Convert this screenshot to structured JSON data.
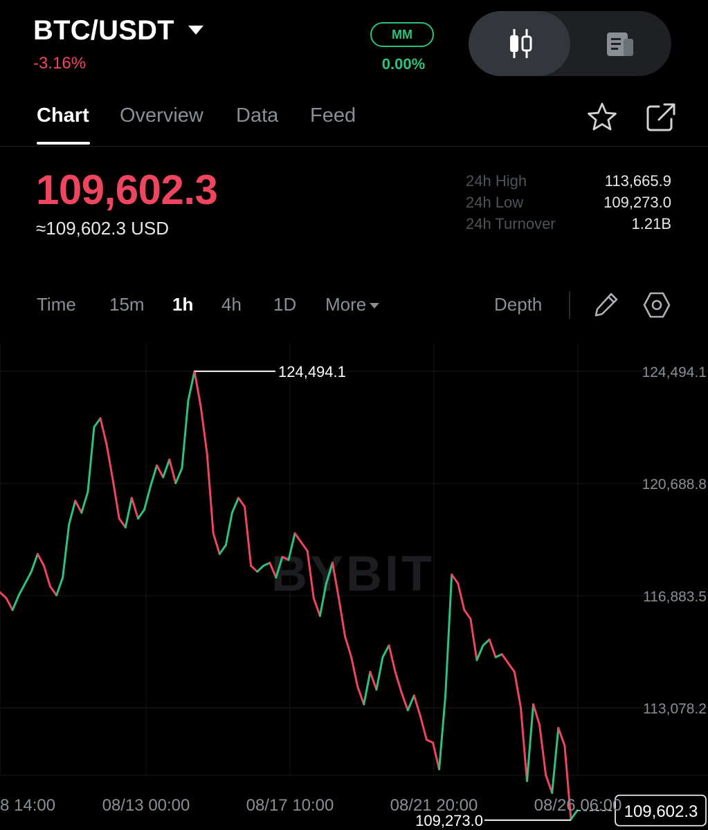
{
  "header": {
    "pair": "BTC/USDT",
    "change": "-3.16%",
    "mm_label": "MM",
    "mm_value": "0.00%",
    "view_toggle": {
      "active": "chart-view",
      "icons": [
        "candlestick-icon",
        "document-icon"
      ]
    }
  },
  "tabs": [
    {
      "label": "Chart",
      "active": true
    },
    {
      "label": "Overview",
      "active": false
    },
    {
      "label": "Data",
      "active": false
    },
    {
      "label": "Feed",
      "active": false
    }
  ],
  "actions": {
    "icons": [
      "star-icon",
      "share-icon"
    ]
  },
  "price": {
    "last": "109,602.3",
    "usd": "≈109,602.3 USD"
  },
  "stats": [
    {
      "label": "24h High",
      "value": "113,665.9"
    },
    {
      "label": "24h Low",
      "value": "109,273.0"
    },
    {
      "label": "24h Turnover",
      "value": "1.21B"
    }
  ],
  "intervals": {
    "items": [
      {
        "label": "Time",
        "active": false
      },
      {
        "label": "15m",
        "active": false
      },
      {
        "label": "1h",
        "active": true
      },
      {
        "label": "4h",
        "active": false
      },
      {
        "label": "1D",
        "active": false
      },
      {
        "label": "More",
        "active": false
      }
    ],
    "depth_label": "Depth",
    "icons": [
      "pencil-icon",
      "settings-hex-icon"
    ]
  },
  "colors": {
    "up": "#2ec27e",
    "down": "#f0455e",
    "grid": "#17191c",
    "axis_text": "#8a8f96"
  },
  "chart_data": {
    "type": "line",
    "series": [
      {
        "values": [
          117000,
          116800,
          116400,
          116900,
          117300,
          117700,
          118300,
          117900,
          117200,
          116900,
          117500,
          119300,
          120100,
          119700,
          120400,
          122600,
          122900,
          122000,
          120800,
          119500,
          119200,
          120200,
          119500,
          119800,
          120600,
          121300,
          120900,
          121500,
          120700,
          121200,
          123500,
          124494.1,
          123300,
          121700,
          119000,
          118300,
          118600,
          119700,
          120200,
          119900,
          117900,
          117700,
          117900,
          118000,
          117500,
          118200,
          118100,
          119000,
          118700,
          118400,
          116800,
          116200,
          117300,
          118000,
          116800,
          115500,
          114800,
          113800,
          113200,
          114300,
          113700,
          114800,
          115200,
          114300,
          113600,
          113000,
          113500,
          112800,
          112000,
          111900,
          111000,
          113500,
          117600,
          117300,
          116400,
          116100,
          114700,
          115200,
          115400,
          114800,
          114900,
          114600,
          114300,
          113100,
          110600,
          113200,
          112500,
          110800,
          110200,
          112400,
          111800,
          109300,
          109602.3
        ]
      }
    ],
    "x_tick_labels": [
      "8 14:00",
      "08/13 00:00",
      "08/17 10:00",
      "08/21 20:00",
      "08/26 06:00"
    ],
    "y_tick_labels": [
      "124,494.1",
      "120,688.8",
      "116,883.5",
      "113,078.2"
    ],
    "y_ticks": [
      124494.1,
      120688.8,
      116883.5,
      113078.2
    ],
    "ylim": [
      108940,
      125450
    ],
    "high_annotation": {
      "value": 124494.1,
      "label": "124,494.1"
    },
    "low_annotation": {
      "value": 109273.0,
      "label": "109,273.0"
    },
    "last_price_tag": {
      "value": 109602.3,
      "label": "109,602.3"
    },
    "watermark": "BYBIT",
    "grid": true
  }
}
